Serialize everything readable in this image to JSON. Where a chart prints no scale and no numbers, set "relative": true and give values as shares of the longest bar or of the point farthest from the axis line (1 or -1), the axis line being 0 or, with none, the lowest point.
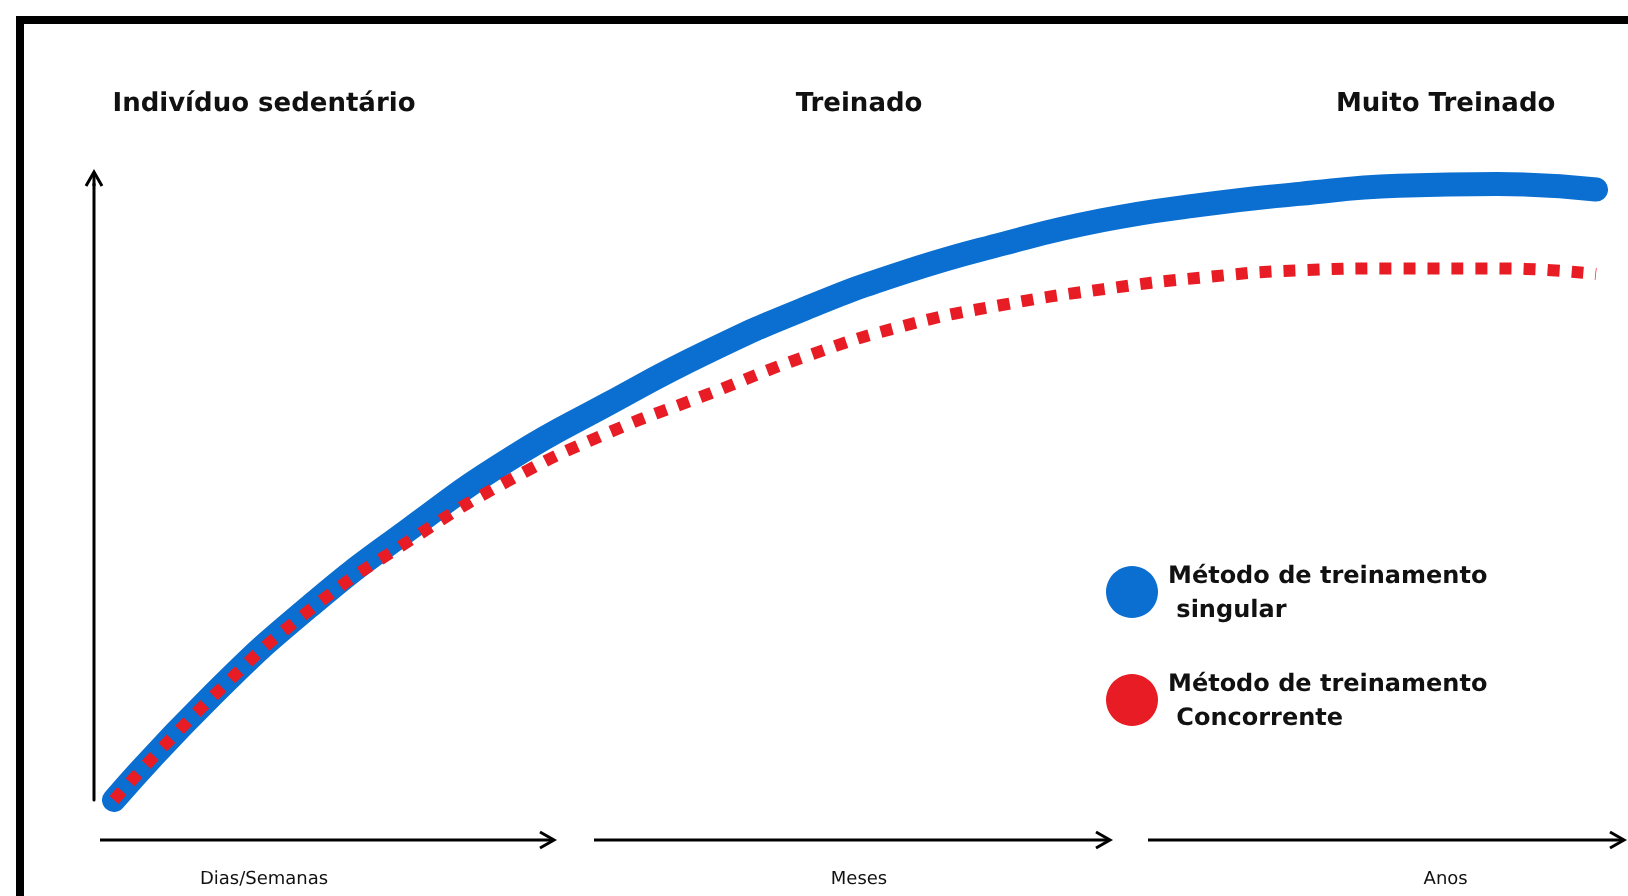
{
  "chart_data": {
    "type": "line",
    "relative": true,
    "categories": [
      null,
      null,
      null,
      null,
      null,
      null,
      null,
      null,
      null,
      null,
      null,
      null,
      null,
      null,
      null,
      null
    ],
    "series": [
      {
        "name": "Método de treinamento singular",
        "color": "#0a6fd1",
        "line_style": "solid",
        "values": [
          0,
          0.171,
          0.317,
          0.441,
          0.553,
          0.643,
          0.727,
          0.798,
          0.857,
          0.903,
          0.941,
          0.966,
          0.984,
          0.997,
          1,
          0.991
        ]
      },
      {
        "name": "Método de treinamento Concorrente",
        "color": "#e81c24",
        "line_style": "dotted",
        "values": [
          0,
          0.168,
          0.311,
          0.422,
          0.519,
          0.596,
          0.658,
          0.72,
          0.77,
          0.804,
          0.829,
          0.848,
          0.86,
          0.863,
          0.863,
          0.854
        ]
      }
    ],
    "annotations": [
      "Indivíduo sedentário",
      "Treinado",
      "Muito Treinado",
      "Dias/Semanas",
      "Meses",
      "Anos"
    ],
    "legend": "right",
    "marker": "none",
    "grid": false
  }
}
